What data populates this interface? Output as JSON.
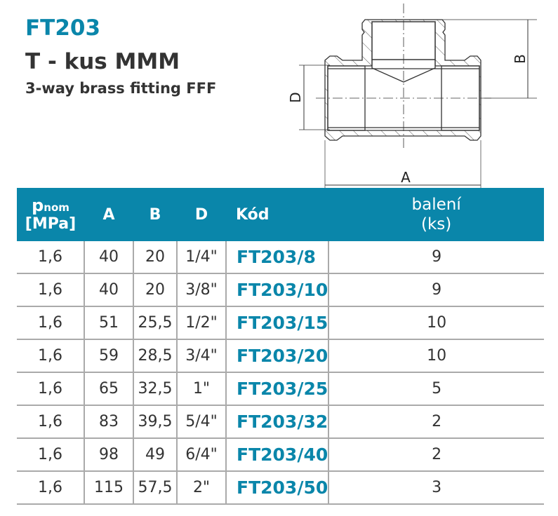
{
  "header": {
    "code": "FT203",
    "title": "T - kus MMM",
    "subtitle": "3-way brass fitting FFF"
  },
  "drawing": {
    "labels": {
      "a": "A",
      "b": "B",
      "d": "D"
    }
  },
  "colors": {
    "accent": "#0a86aa"
  },
  "table": {
    "columns": {
      "p_main": "p",
      "p_sub": "nom",
      "p_unit": "[MPa]",
      "a": "A",
      "b": "B",
      "d": "D",
      "kod": "Kód",
      "baleni": "balení",
      "baleni_unit": "(ks)"
    },
    "rows": [
      [
        "1,6",
        "40",
        "20",
        "1/4\"",
        "FT203/8",
        "9"
      ],
      [
        "1,6",
        "40",
        "20",
        "3/8\"",
        "FT203/10",
        "9"
      ],
      [
        "1,6",
        "51",
        "25,5",
        "1/2\"",
        "FT203/15",
        "10"
      ],
      [
        "1,6",
        "59",
        "28,5",
        "3/4\"",
        "FT203/20",
        "10"
      ],
      [
        "1,6",
        "65",
        "32,5",
        "1\"",
        "FT203/25",
        "5"
      ],
      [
        "1,6",
        "83",
        "39,5",
        "5/4\"",
        "FT203/32",
        "2"
      ],
      [
        "1,6",
        "98",
        "49",
        "6/4\"",
        "FT203/40",
        "2"
      ],
      [
        "1,6",
        "115",
        "57,5",
        "2\"",
        "FT203/50",
        "3"
      ]
    ]
  }
}
